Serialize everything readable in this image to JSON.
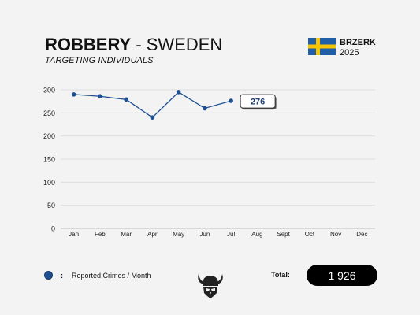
{
  "header": {
    "title_bold": "ROBBERY",
    "title_rest": " - SWEDEN",
    "subtitle": "TARGETING INDIVIDUALS"
  },
  "brand": {
    "name": "BRZERK",
    "year": "2025",
    "flag_colors": {
      "blue": "#1f5fa8",
      "yellow": "#f7c600"
    }
  },
  "legend": {
    "marker": ":",
    "label": "Reported Crimes / Month",
    "color": "#1d4f91"
  },
  "total": {
    "label": "Total:",
    "value": "1 926"
  },
  "logo_icon": "viking-helmet-skull-icon",
  "chart_data": {
    "type": "line",
    "title": "",
    "xlabel": "",
    "ylabel": "",
    "categories": [
      "Jan",
      "Feb",
      "Mar",
      "Apr",
      "May",
      "Jun",
      "Jul",
      "Aug",
      "Sept",
      "Oct",
      "Nov",
      "Dec"
    ],
    "y_ticks": [
      0,
      50,
      100,
      150,
      200,
      250,
      300
    ],
    "ylim": [
      0,
      300
    ],
    "grid": true,
    "series": [
      {
        "values": [
          290,
          286,
          279,
          240,
          295,
          260,
          276,
          null,
          null,
          null,
          null,
          null
        ],
        "color": "#1d4f91"
      }
    ],
    "callout": {
      "category": "Jul",
      "label": "276"
    }
  }
}
